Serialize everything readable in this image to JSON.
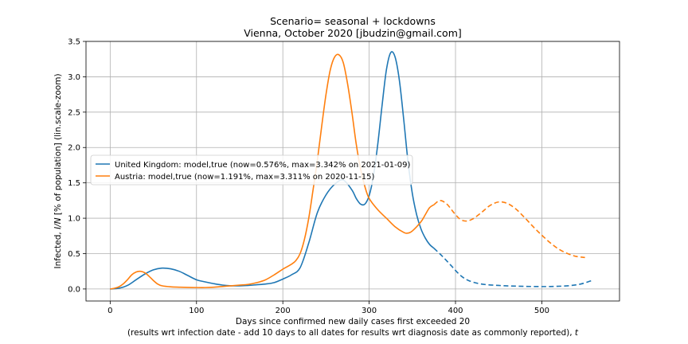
{
  "chart_data": {
    "type": "line",
    "title": "Scenario= seasonal + lockdowns",
    "subtitle": "Vienna, October 2020 [jbudzin@gmail.com]",
    "xlabel": "Days since confirmed new daily cases first exceeded 20",
    "xlabel2_prefix": "(results wrt infection date - add 10 days to all dates for results wrt diagnosis date as commonly reported), ",
    "xlabel2_var": "t",
    "ylabel_prefix": "Infected, ",
    "ylabel_var": "I/N",
    "ylabel_suffix": " [% of population] (lin.scale-zoom)",
    "xlim": [
      -28,
      590
    ],
    "ylim": [
      -0.17,
      3.5
    ],
    "xticks": [
      0,
      100,
      200,
      300,
      400,
      500
    ],
    "yticks": [
      0.0,
      0.5,
      1.0,
      1.5,
      2.0,
      2.5,
      3.0,
      3.5
    ],
    "grid": true,
    "legend_position": "center-left",
    "series": [
      {
        "name": "United Kingdom: model,true (now=0.576%, max=3.342% on 2021-01-09)",
        "color": "#1f77b4",
        "solid": [
          [
            0,
            0.0
          ],
          [
            10,
            0.01
          ],
          [
            20,
            0.05
          ],
          [
            30,
            0.13
          ],
          [
            40,
            0.21
          ],
          [
            50,
            0.27
          ],
          [
            60,
            0.295
          ],
          [
            70,
            0.285
          ],
          [
            80,
            0.25
          ],
          [
            90,
            0.19
          ],
          [
            100,
            0.13
          ],
          [
            110,
            0.1
          ],
          [
            120,
            0.075
          ],
          [
            130,
            0.055
          ],
          [
            140,
            0.045
          ],
          [
            150,
            0.045
          ],
          [
            160,
            0.05
          ],
          [
            170,
            0.06
          ],
          [
            180,
            0.07
          ],
          [
            190,
            0.09
          ],
          [
            200,
            0.14
          ],
          [
            210,
            0.2
          ],
          [
            220,
            0.3
          ],
          [
            230,
            0.65
          ],
          [
            240,
            1.08
          ],
          [
            250,
            1.33
          ],
          [
            260,
            1.48
          ],
          [
            270,
            1.54
          ],
          [
            280,
            1.4
          ],
          [
            285,
            1.28
          ],
          [
            290,
            1.2
          ],
          [
            295,
            1.2
          ],
          [
            300,
            1.32
          ],
          [
            305,
            1.6
          ],
          [
            310,
            2.05
          ],
          [
            315,
            2.6
          ],
          [
            320,
            3.1
          ],
          [
            325,
            3.342
          ],
          [
            330,
            3.28
          ],
          [
            335,
            2.95
          ],
          [
            340,
            2.4
          ],
          [
            345,
            1.8
          ],
          [
            350,
            1.35
          ],
          [
            355,
            1.05
          ],
          [
            360,
            0.85
          ],
          [
            365,
            0.72
          ],
          [
            370,
            0.63
          ],
          [
            375,
            0.576
          ]
        ],
        "dashed": [
          [
            375,
            0.576
          ],
          [
            385,
            0.46
          ],
          [
            395,
            0.33
          ],
          [
            405,
            0.2
          ],
          [
            415,
            0.12
          ],
          [
            430,
            0.07
          ],
          [
            450,
            0.05
          ],
          [
            470,
            0.04
          ],
          [
            490,
            0.035
          ],
          [
            510,
            0.035
          ],
          [
            530,
            0.045
          ],
          [
            545,
            0.07
          ],
          [
            558,
            0.12
          ]
        ]
      },
      {
        "name": "Austria: model,true (now=1.191%, max=3.311% on 2020-11-15)",
        "color": "#ff7f0e",
        "solid": [
          [
            0,
            0.0
          ],
          [
            5,
            0.01
          ],
          [
            10,
            0.03
          ],
          [
            15,
            0.07
          ],
          [
            20,
            0.13
          ],
          [
            25,
            0.2
          ],
          [
            30,
            0.24
          ],
          [
            35,
            0.25
          ],
          [
            40,
            0.23
          ],
          [
            45,
            0.18
          ],
          [
            50,
            0.12
          ],
          [
            55,
            0.07
          ],
          [
            60,
            0.045
          ],
          [
            70,
            0.03
          ],
          [
            80,
            0.025
          ],
          [
            90,
            0.022
          ],
          [
            100,
            0.02
          ],
          [
            110,
            0.02
          ],
          [
            120,
            0.025
          ],
          [
            130,
            0.035
          ],
          [
            140,
            0.045
          ],
          [
            150,
            0.055
          ],
          [
            160,
            0.065
          ],
          [
            170,
            0.09
          ],
          [
            180,
            0.13
          ],
          [
            190,
            0.2
          ],
          [
            200,
            0.28
          ],
          [
            210,
            0.35
          ],
          [
            215,
            0.4
          ],
          [
            220,
            0.5
          ],
          [
            225,
            0.7
          ],
          [
            230,
            1.0
          ],
          [
            235,
            1.4
          ],
          [
            240,
            1.82
          ],
          [
            245,
            2.3
          ],
          [
            250,
            2.75
          ],
          [
            255,
            3.1
          ],
          [
            260,
            3.28
          ],
          [
            265,
            3.311
          ],
          [
            270,
            3.2
          ],
          [
            275,
            2.9
          ],
          [
            280,
            2.5
          ],
          [
            285,
            2.05
          ],
          [
            290,
            1.7
          ],
          [
            295,
            1.45
          ],
          [
            300,
            1.28
          ],
          [
            310,
            1.12
          ],
          [
            320,
            1.0
          ],
          [
            330,
            0.88
          ],
          [
            340,
            0.8
          ],
          [
            345,
            0.79
          ],
          [
            350,
            0.82
          ],
          [
            360,
            0.95
          ],
          [
            365,
            1.05
          ],
          [
            370,
            1.15
          ],
          [
            375,
            1.191
          ]
        ],
        "dashed": [
          [
            375,
            1.191
          ],
          [
            382,
            1.25
          ],
          [
            390,
            1.2
          ],
          [
            398,
            1.08
          ],
          [
            405,
            0.99
          ],
          [
            412,
            0.96
          ],
          [
            420,
            0.99
          ],
          [
            430,
            1.08
          ],
          [
            440,
            1.18
          ],
          [
            450,
            1.23
          ],
          [
            460,
            1.21
          ],
          [
            470,
            1.13
          ],
          [
            480,
            1.01
          ],
          [
            490,
            0.88
          ],
          [
            500,
            0.76
          ],
          [
            510,
            0.65
          ],
          [
            520,
            0.56
          ],
          [
            530,
            0.5
          ],
          [
            540,
            0.46
          ],
          [
            550,
            0.445
          ]
        ]
      }
    ]
  }
}
